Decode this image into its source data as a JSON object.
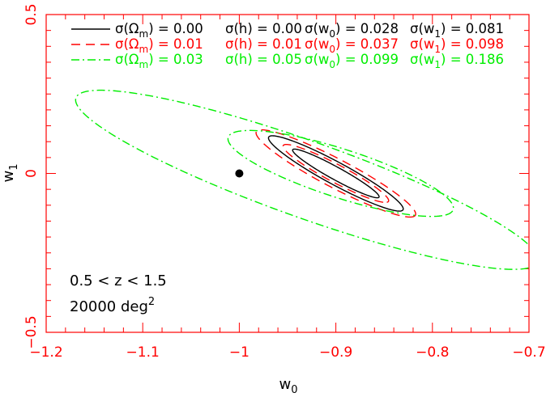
{
  "chart_data": {
    "type": "contour",
    "title": "",
    "xlabel_base": "w",
    "xlabel_sub": "0",
    "ylabel_base": "w",
    "ylabel_sub": "1",
    "xlim": [
      -1.2,
      -0.7
    ],
    "ylim": [
      -0.5,
      0.5
    ],
    "x_ticks": [
      {
        "value": -1.2,
        "label": "−1.2"
      },
      {
        "value": -1.1,
        "label": "−1.1"
      },
      {
        "value": -1.0,
        "label": "−1"
      },
      {
        "value": -0.9,
        "label": "−0.9"
      },
      {
        "value": -0.8,
        "label": "−0.8"
      },
      {
        "value": -0.7,
        "label": "−0.7"
      }
    ],
    "y_ticks": [
      {
        "value": -0.5,
        "label": "−0.5"
      },
      {
        "value": 0.0,
        "label": "0"
      },
      {
        "value": 0.5,
        "label": "0.5"
      }
    ],
    "axis_color": "#ff0000",
    "fiducial_point": {
      "x": -1.0,
      "y": 0.0
    },
    "annotations": [
      {
        "text": "0.5 < z < 1.5",
        "exponent": ""
      },
      {
        "text": "20000 deg",
        "exponent": "2"
      }
    ],
    "legend_position": "top",
    "series": [
      {
        "color": "#000000",
        "style": "solid",
        "legend": {
          "om_label": "σ(Ω",
          "om_sub": "m",
          "om_value": ") = 0.00",
          "h_text": "σ(h) = 0.00",
          "w0_label": "σ(w",
          "w0_sub": "0",
          "w0_value": ") = 0.028",
          "w1_label": "σ(w",
          "w1_sub": "1",
          "w1_value": ") = 0.081"
        },
        "contours": [
          {
            "cx": -0.9,
            "cy": 0.0,
            "a": 0.088,
            "b": 0.0115,
            "slope": -1.75
          },
          {
            "cx": -0.9,
            "cy": 0.0,
            "a": 0.136,
            "b": 0.0205,
            "slope": -1.75
          }
        ]
      },
      {
        "color": "#ff0000",
        "style": "dashed",
        "legend": {
          "om_label": "σ(Ω",
          "om_sub": "m",
          "om_value": ") = 0.01",
          "h_text": "σ(h) = 0.01",
          "w0_label": "σ(w",
          "w0_sub": "0",
          "w0_value": ") = 0.037",
          "w1_label": "σ(w",
          "w1_sub": "1",
          "w1_value": ") = 0.098"
        },
        "contours": [
          {
            "cx": -0.9,
            "cy": 0.0,
            "a": 0.105,
            "b": 0.0165,
            "slope": -1.72
          },
          {
            "cx": -0.9,
            "cy": 0.0,
            "a": 0.158,
            "b": 0.0265,
            "slope": -1.72
          }
        ]
      },
      {
        "color": "#00ee00",
        "style": "dashdot",
        "legend": {
          "om_label": "σ(Ω",
          "om_sub": "m",
          "om_value": ") = 0.03",
          "h_text": "σ(h) = 0.05",
          "w0_label": "σ(w",
          "w0_sub": "0",
          "w0_value": ") = 0.099",
          "w1_label": "σ(w",
          "w1_sub": "1",
          "w1_value": ") = 0.186"
        },
        "contours": [
          {
            "cx": -0.895,
            "cy": 0.0,
            "a": 0.17,
            "b": 0.055,
            "slope": -1.2
          },
          {
            "cx": -0.93,
            "cy": -0.02,
            "a": 0.36,
            "b": 0.085,
            "slope": -1.2
          }
        ]
      }
    ]
  }
}
